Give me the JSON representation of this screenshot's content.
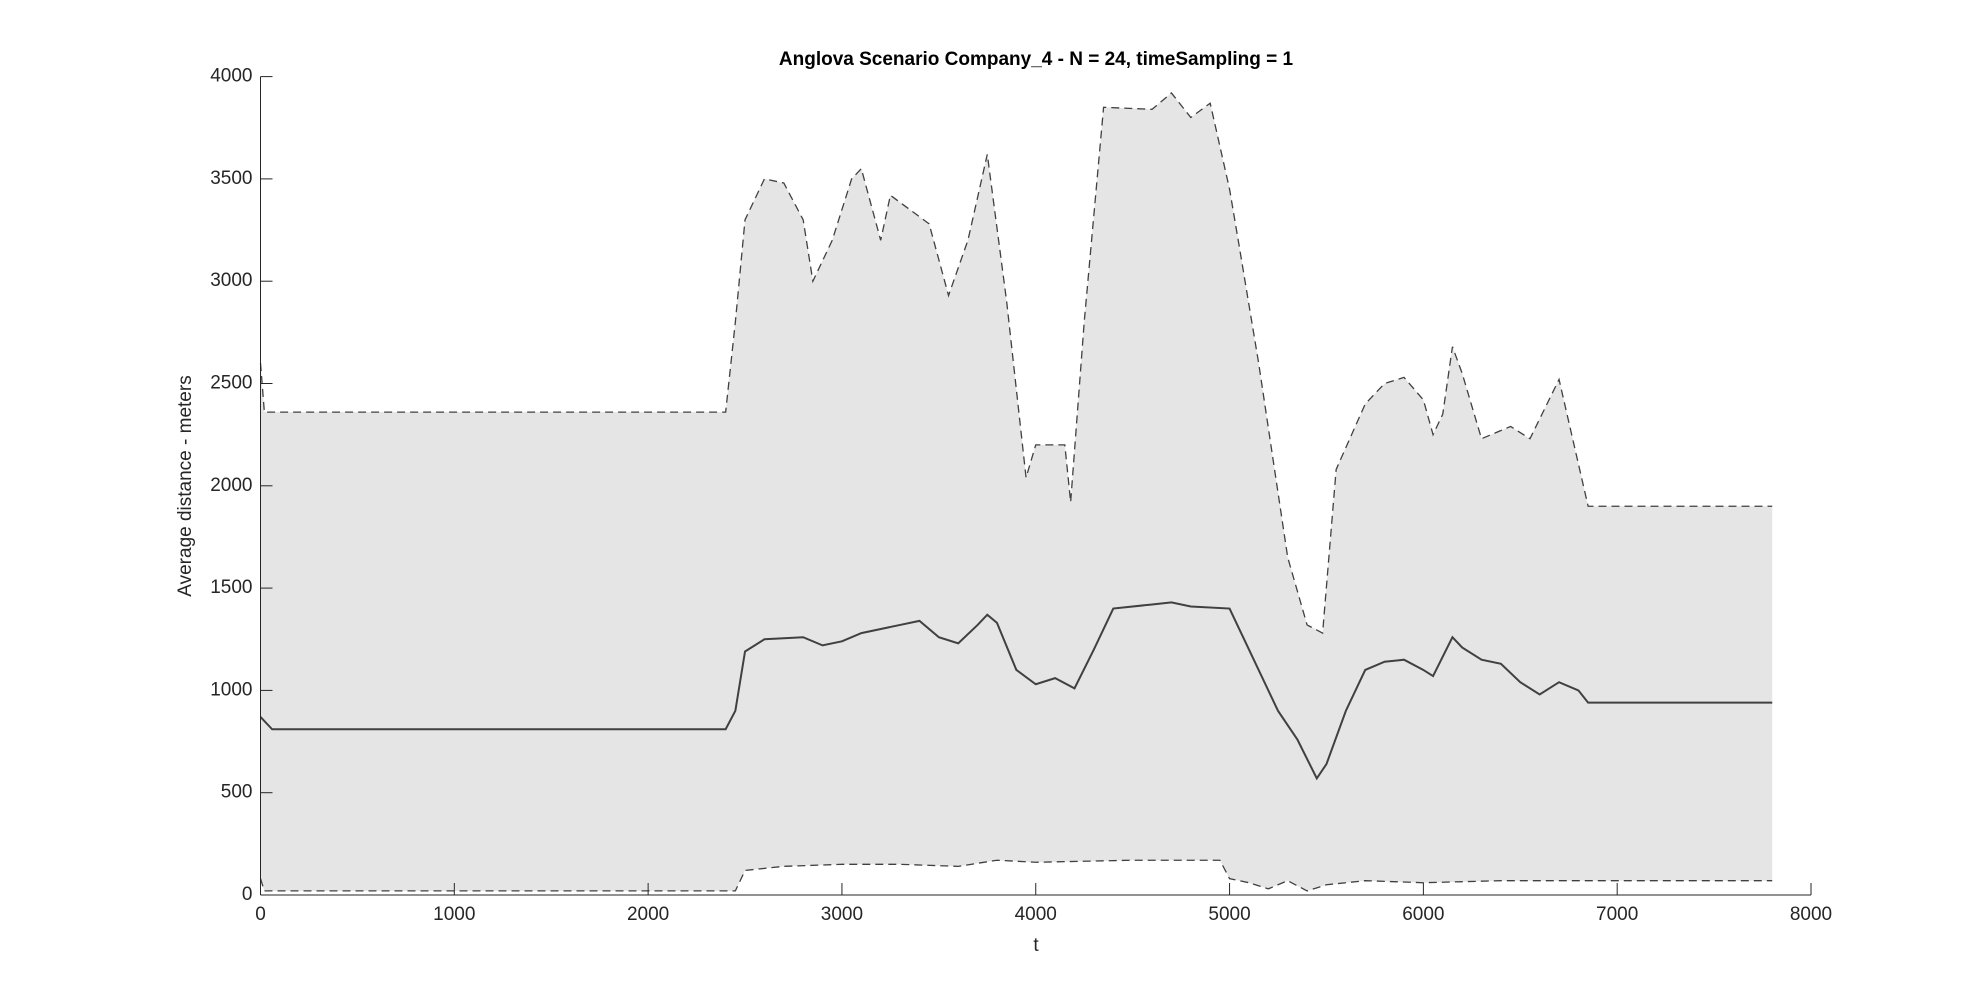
{
  "chart_data": {
    "type": "line",
    "title": "Anglova Scenario Company_4 - N = 24, timeSampling = 1",
    "xlabel": "t",
    "ylabel": "Average distance - meters",
    "xlim": [
      0,
      8000
    ],
    "xticks": [
      0,
      1000,
      2000,
      3000,
      4000,
      5000,
      6000,
      7000,
      8000
    ],
    "ylim": [
      0,
      4000
    ],
    "yticks": [
      0,
      500,
      1000,
      1500,
      2000,
      2500,
      3000,
      3500,
      4000
    ],
    "fill_between": [
      1,
      2
    ],
    "fill_color": "#e5e5e5",
    "series": [
      {
        "color": "#404040",
        "dash": false,
        "x": [
          0,
          60,
          2400,
          2450,
          2500,
          2600,
          2800,
          2900,
          3000,
          3100,
          3300,
          3400,
          3500,
          3600,
          3700,
          3750,
          3800,
          3900,
          4000,
          4100,
          4200,
          4300,
          4400,
          4600,
          4700,
          4800,
          5000,
          5050,
          5150,
          5250,
          5350,
          5450,
          5500,
          5600,
          5700,
          5800,
          5900,
          6000,
          6050,
          6150,
          6200,
          6300,
          6400,
          6500,
          6600,
          6700,
          6800,
          6850,
          7800
        ],
        "values": [
          870,
          810,
          810,
          900,
          1190,
          1250,
          1260,
          1220,
          1240,
          1280,
          1320,
          1340,
          1260,
          1230,
          1320,
          1370,
          1330,
          1100,
          1030,
          1060,
          1010,
          1200,
          1400,
          1420,
          1430,
          1410,
          1400,
          1300,
          1100,
          900,
          760,
          570,
          640,
          900,
          1100,
          1140,
          1150,
          1100,
          1070,
          1260,
          1210,
          1150,
          1130,
          1040,
          980,
          1040,
          1000,
          940,
          940
        ]
      },
      {
        "color": "#404040",
        "dash": true,
        "x": [
          0,
          20,
          2400,
          2450,
          2500,
          2600,
          2700,
          2800,
          2850,
          2950,
          3050,
          3100,
          3200,
          3250,
          3350,
          3450,
          3550,
          3650,
          3750,
          3850,
          3950,
          4000,
          4150,
          4180,
          4250,
          4350,
          4600,
          4700,
          4800,
          4900,
          5000,
          5050,
          5150,
          5300,
          5400,
          5480,
          5550,
          5700,
          5800,
          5900,
          6000,
          6050,
          6100,
          6150,
          6200,
          6300,
          6450,
          6550,
          6700,
          6850,
          7800
        ],
        "values": [
          2600,
          2360,
          2360,
          2800,
          3300,
          3500,
          3480,
          3300,
          3000,
          3200,
          3500,
          3550,
          3200,
          3420,
          3350,
          3280,
          2930,
          3200,
          3620,
          2900,
          2040,
          2200,
          2200,
          1920,
          2800,
          3850,
          3840,
          3920,
          3800,
          3870,
          3450,
          3170,
          2600,
          1650,
          1320,
          1280,
          2080,
          2400,
          2500,
          2530,
          2420,
          2250,
          2350,
          2680,
          2550,
          2230,
          2290,
          2230,
          2520,
          1900,
          1900
        ]
      },
      {
        "color": "#404040",
        "dash": true,
        "x": [
          0,
          20,
          2450,
          2500,
          2700,
          3000,
          3300,
          3600,
          3800,
          4000,
          4500,
          4950,
          5000,
          5100,
          5200,
          5300,
          5400,
          5500,
          5700,
          6000,
          6400,
          6800,
          7800
        ],
        "values": [
          80,
          20,
          20,
          120,
          140,
          150,
          150,
          140,
          170,
          160,
          170,
          170,
          80,
          60,
          30,
          70,
          20,
          50,
          70,
          60,
          70,
          70,
          70
        ]
      }
    ]
  }
}
